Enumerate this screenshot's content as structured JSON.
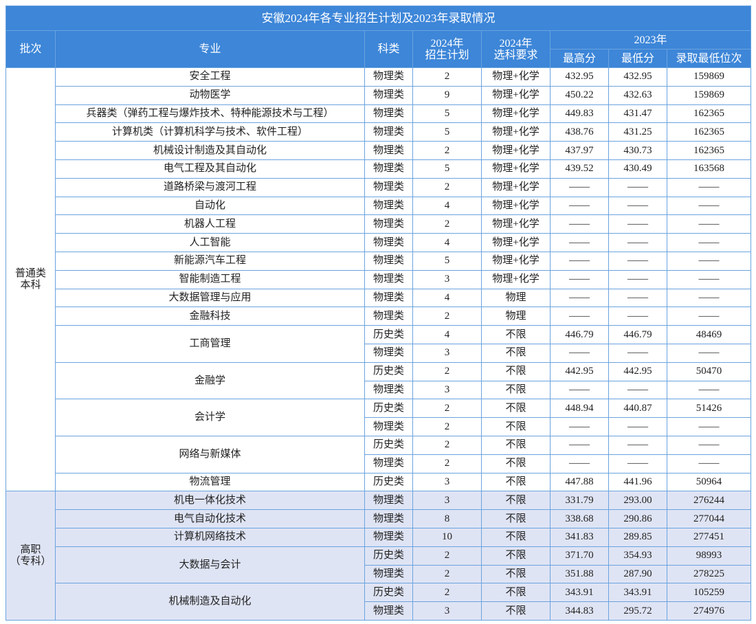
{
  "title": "安徽2024年各专业招生计划及2023年录取情况",
  "headers": {
    "batch": "批次",
    "major": "专业",
    "subject": "科类",
    "plan": [
      "2024年",
      "招生计划"
    ],
    "requirement": [
      "2024年",
      "选科要求"
    ],
    "year2023": "2023年",
    "max": "最高分",
    "min": "最低分",
    "rank": "录取最低位次"
  },
  "batches": [
    {
      "label": [
        "普通类",
        "本科"
      ],
      "majors": [
        {
          "name": "安全工程",
          "rows": [
            [
              "物理类",
              "2",
              "物理+化学",
              "432.95",
              "432.95",
              "159869"
            ]
          ]
        },
        {
          "name": "动物医学",
          "rows": [
            [
              "物理类",
              "9",
              "物理+化学",
              "450.22",
              "432.63",
              "159869"
            ]
          ]
        },
        {
          "name": "兵器类（弹药工程与爆炸技术、特种能源技术与工程）",
          "rows": [
            [
              "物理类",
              "5",
              "物理+化学",
              "449.83",
              "431.47",
              "162365"
            ]
          ]
        },
        {
          "name": "计算机类（计算机科学与技术、软件工程）",
          "rows": [
            [
              "物理类",
              "5",
              "物理+化学",
              "438.76",
              "431.25",
              "162365"
            ]
          ]
        },
        {
          "name": "机械设计制造及其自动化",
          "rows": [
            [
              "物理类",
              "2",
              "物理+化学",
              "437.97",
              "430.73",
              "162365"
            ]
          ]
        },
        {
          "name": "电气工程及其自动化",
          "rows": [
            [
              "物理类",
              "5",
              "物理+化学",
              "439.52",
              "430.49",
              "163568"
            ]
          ]
        },
        {
          "name": "道路桥梁与渡河工程",
          "rows": [
            [
              "物理类",
              "2",
              "物理+化学",
              "——",
              "——",
              "——"
            ]
          ]
        },
        {
          "name": "自动化",
          "rows": [
            [
              "物理类",
              "4",
              "物理+化学",
              "——",
              "——",
              "——"
            ]
          ]
        },
        {
          "name": "机器人工程",
          "rows": [
            [
              "物理类",
              "2",
              "物理+化学",
              "——",
              "——",
              "——"
            ]
          ]
        },
        {
          "name": "人工智能",
          "rows": [
            [
              "物理类",
              "4",
              "物理+化学",
              "——",
              "——",
              "——"
            ]
          ]
        },
        {
          "name": "新能源汽车工程",
          "rows": [
            [
              "物理类",
              "5",
              "物理+化学",
              "——",
              "——",
              "——"
            ]
          ]
        },
        {
          "name": "智能制造工程",
          "rows": [
            [
              "物理类",
              "3",
              "物理+化学",
              "——",
              "——",
              "——"
            ]
          ]
        },
        {
          "name": "大数据管理与应用",
          "rows": [
            [
              "物理类",
              "4",
              "物理",
              "——",
              "——",
              "——"
            ]
          ]
        },
        {
          "name": "金融科技",
          "rows": [
            [
              "物理类",
              "2",
              "物理",
              "——",
              "——",
              "——"
            ]
          ]
        },
        {
          "name": "工商管理",
          "rows": [
            [
              "历史类",
              "4",
              "不限",
              "446.79",
              "446.79",
              "48469"
            ],
            [
              "物理类",
              "3",
              "不限",
              "——",
              "——",
              "——"
            ]
          ]
        },
        {
          "name": "金融学",
          "rows": [
            [
              "历史类",
              "2",
              "不限",
              "442.95",
              "442.95",
              "50470"
            ],
            [
              "物理类",
              "3",
              "不限",
              "——",
              "——",
              "——"
            ]
          ]
        },
        {
          "name": "会计学",
          "rows": [
            [
              "历史类",
              "2",
              "不限",
              "448.94",
              "440.87",
              "51426"
            ],
            [
              "物理类",
              "2",
              "不限",
              "——",
              "——",
              "——"
            ]
          ]
        },
        {
          "name": "网络与新媒体",
          "rows": [
            [
              "历史类",
              "2",
              "不限",
              "——",
              "——",
              "——"
            ],
            [
              "物理类",
              "2",
              "不限",
              "——",
              "——",
              "——"
            ]
          ]
        },
        {
          "name": "物流管理",
          "rows": [
            [
              "历史类",
              "3",
              "不限",
              "447.88",
              "441.96",
              "50964"
            ]
          ]
        }
      ]
    },
    {
      "label": [
        "高职",
        "（专科）"
      ],
      "majors": [
        {
          "name": "机电一体化技术",
          "rows": [
            [
              "物理类",
              "3",
              "不限",
              "331.79",
              "293.00",
              "276244"
            ]
          ]
        },
        {
          "name": "电气自动化技术",
          "rows": [
            [
              "物理类",
              "8",
              "不限",
              "338.68",
              "290.86",
              "277044"
            ]
          ]
        },
        {
          "name": "计算机网络技术",
          "rows": [
            [
              "物理类",
              "10",
              "不限",
              "341.83",
              "289.85",
              "277451"
            ]
          ]
        },
        {
          "name": "大数据与会计",
          "rows": [
            [
              "历史类",
              "2",
              "不限",
              "371.70",
              "354.93",
              "98993"
            ],
            [
              "物理类",
              "2",
              "不限",
              "351.88",
              "287.90",
              "278225"
            ]
          ]
        },
        {
          "name": "机械制造及自动化",
          "rows": [
            [
              "历史类",
              "2",
              "不限",
              "343.91",
              "343.91",
              "105259"
            ],
            [
              "物理类",
              "3",
              "不限",
              "344.83",
              "295.72",
              "274976"
            ]
          ]
        }
      ]
    }
  ]
}
